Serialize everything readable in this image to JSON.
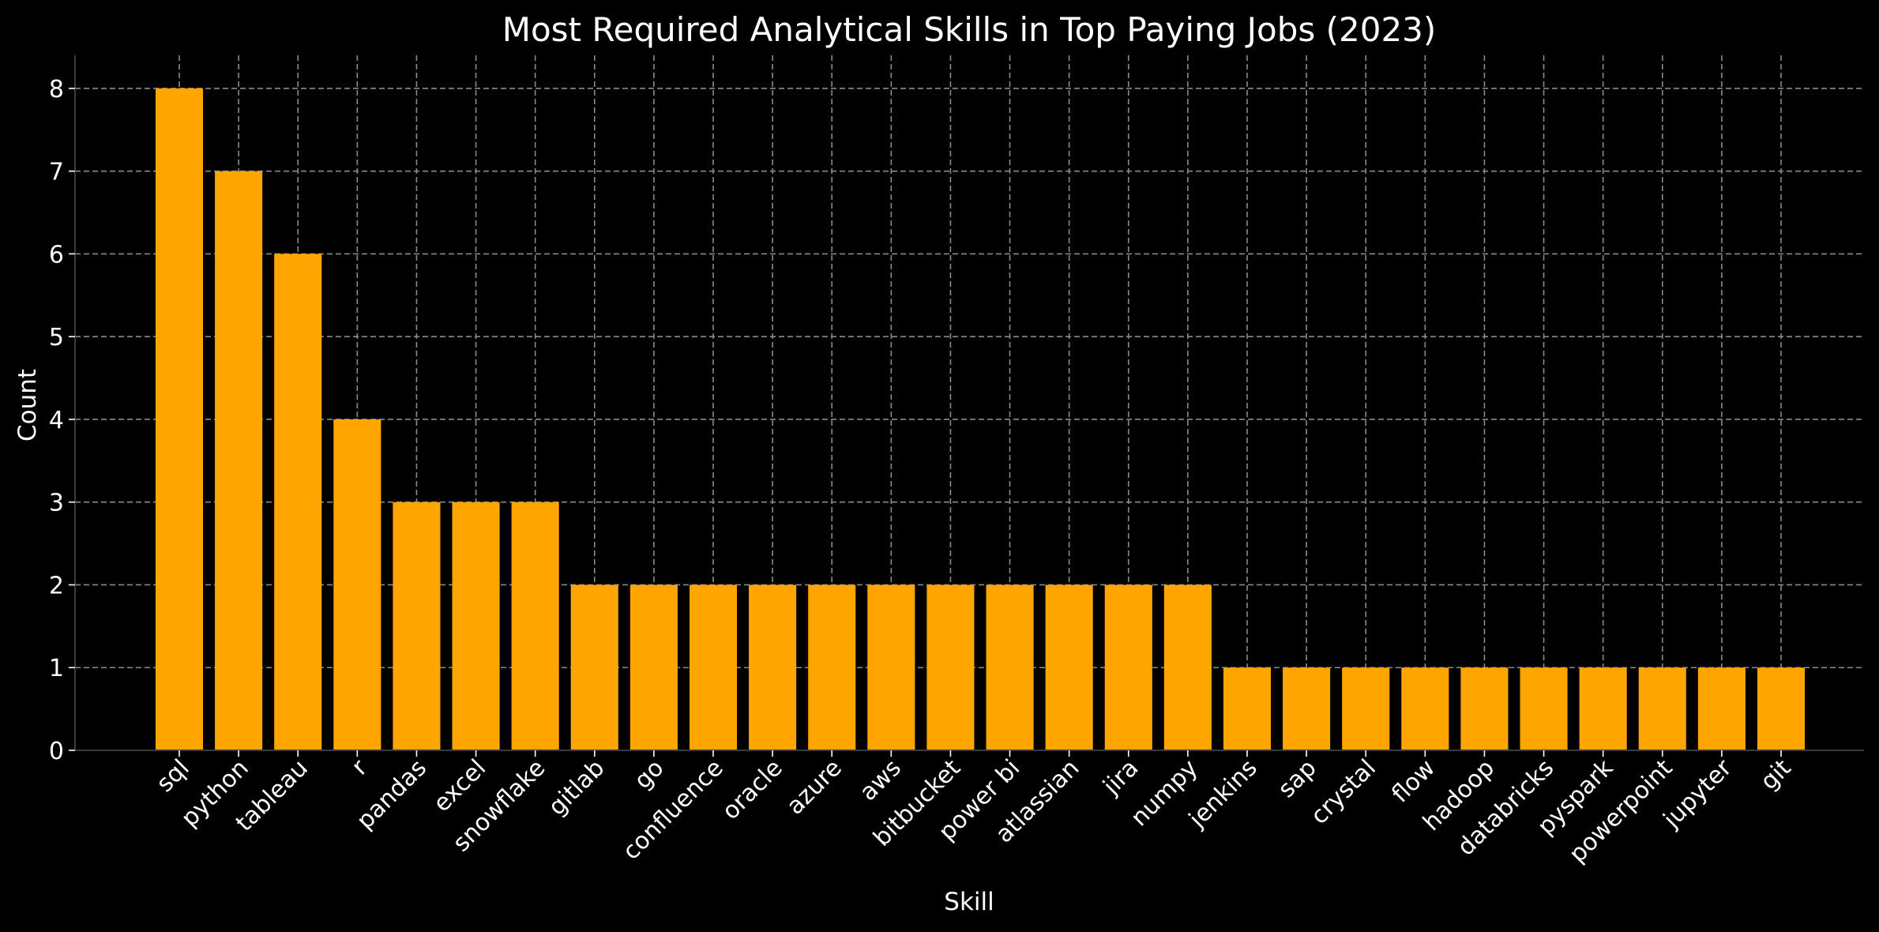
{
  "chart_data": {
    "type": "bar",
    "title": "Most Required Analytical Skills in Top Paying Jobs (2023)",
    "xlabel": "Skill",
    "ylabel": "Count",
    "categories": [
      "sql",
      "python",
      "tableau",
      "r",
      "pandas",
      "excel",
      "snowflake",
      "gitlab",
      "go",
      "confluence",
      "oracle",
      "azure",
      "aws",
      "bitbucket",
      "power bi",
      "atlassian",
      "jira",
      "numpy",
      "jenkins",
      "sap",
      "crystal",
      "flow",
      "hadoop",
      "databricks",
      "pyspark",
      "powerpoint",
      "jupyter",
      "git"
    ],
    "values": [
      8,
      7,
      6,
      4,
      3,
      3,
      3,
      2,
      2,
      2,
      2,
      2,
      2,
      2,
      2,
      2,
      2,
      2,
      1,
      1,
      1,
      1,
      1,
      1,
      1,
      1,
      1,
      1
    ],
    "ylim": [
      0,
      8.4
    ],
    "yticks": [
      0,
      1,
      2,
      3,
      4,
      5,
      6,
      7,
      8
    ],
    "grid": true,
    "bar_color": "#FFA500",
    "background_color": "#000000",
    "text_color": "#ffffff"
  }
}
